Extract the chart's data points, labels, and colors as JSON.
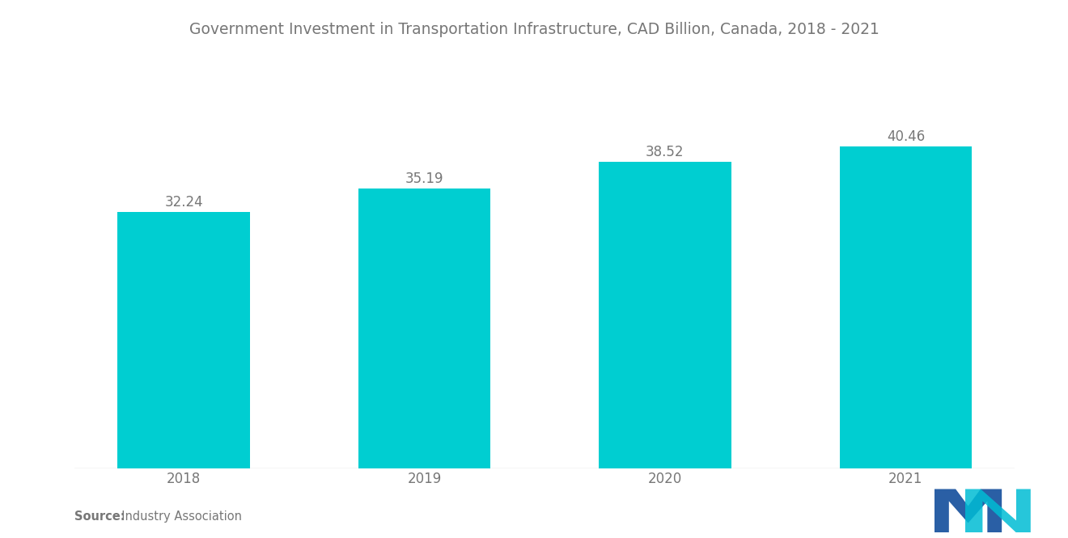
{
  "title": "Government Investment in Transportation Infrastructure, CAD Billion, Canada, 2018 - 2021",
  "categories": [
    "2018",
    "2019",
    "2020",
    "2021"
  ],
  "values": [
    32.24,
    35.19,
    38.52,
    40.46
  ],
  "bar_color": "#00CED1",
  "background_color": "#ffffff",
  "title_fontsize": 13.5,
  "label_fontsize": 12,
  "value_fontsize": 12,
  "source_bold": "Source:",
  "source_normal": "  Industry Association",
  "ylim": [
    0,
    46
  ],
  "bar_width": 0.55,
  "text_color": "#777777",
  "logo_blue": "#2A5FA5",
  "logo_teal": "#00BCD4"
}
